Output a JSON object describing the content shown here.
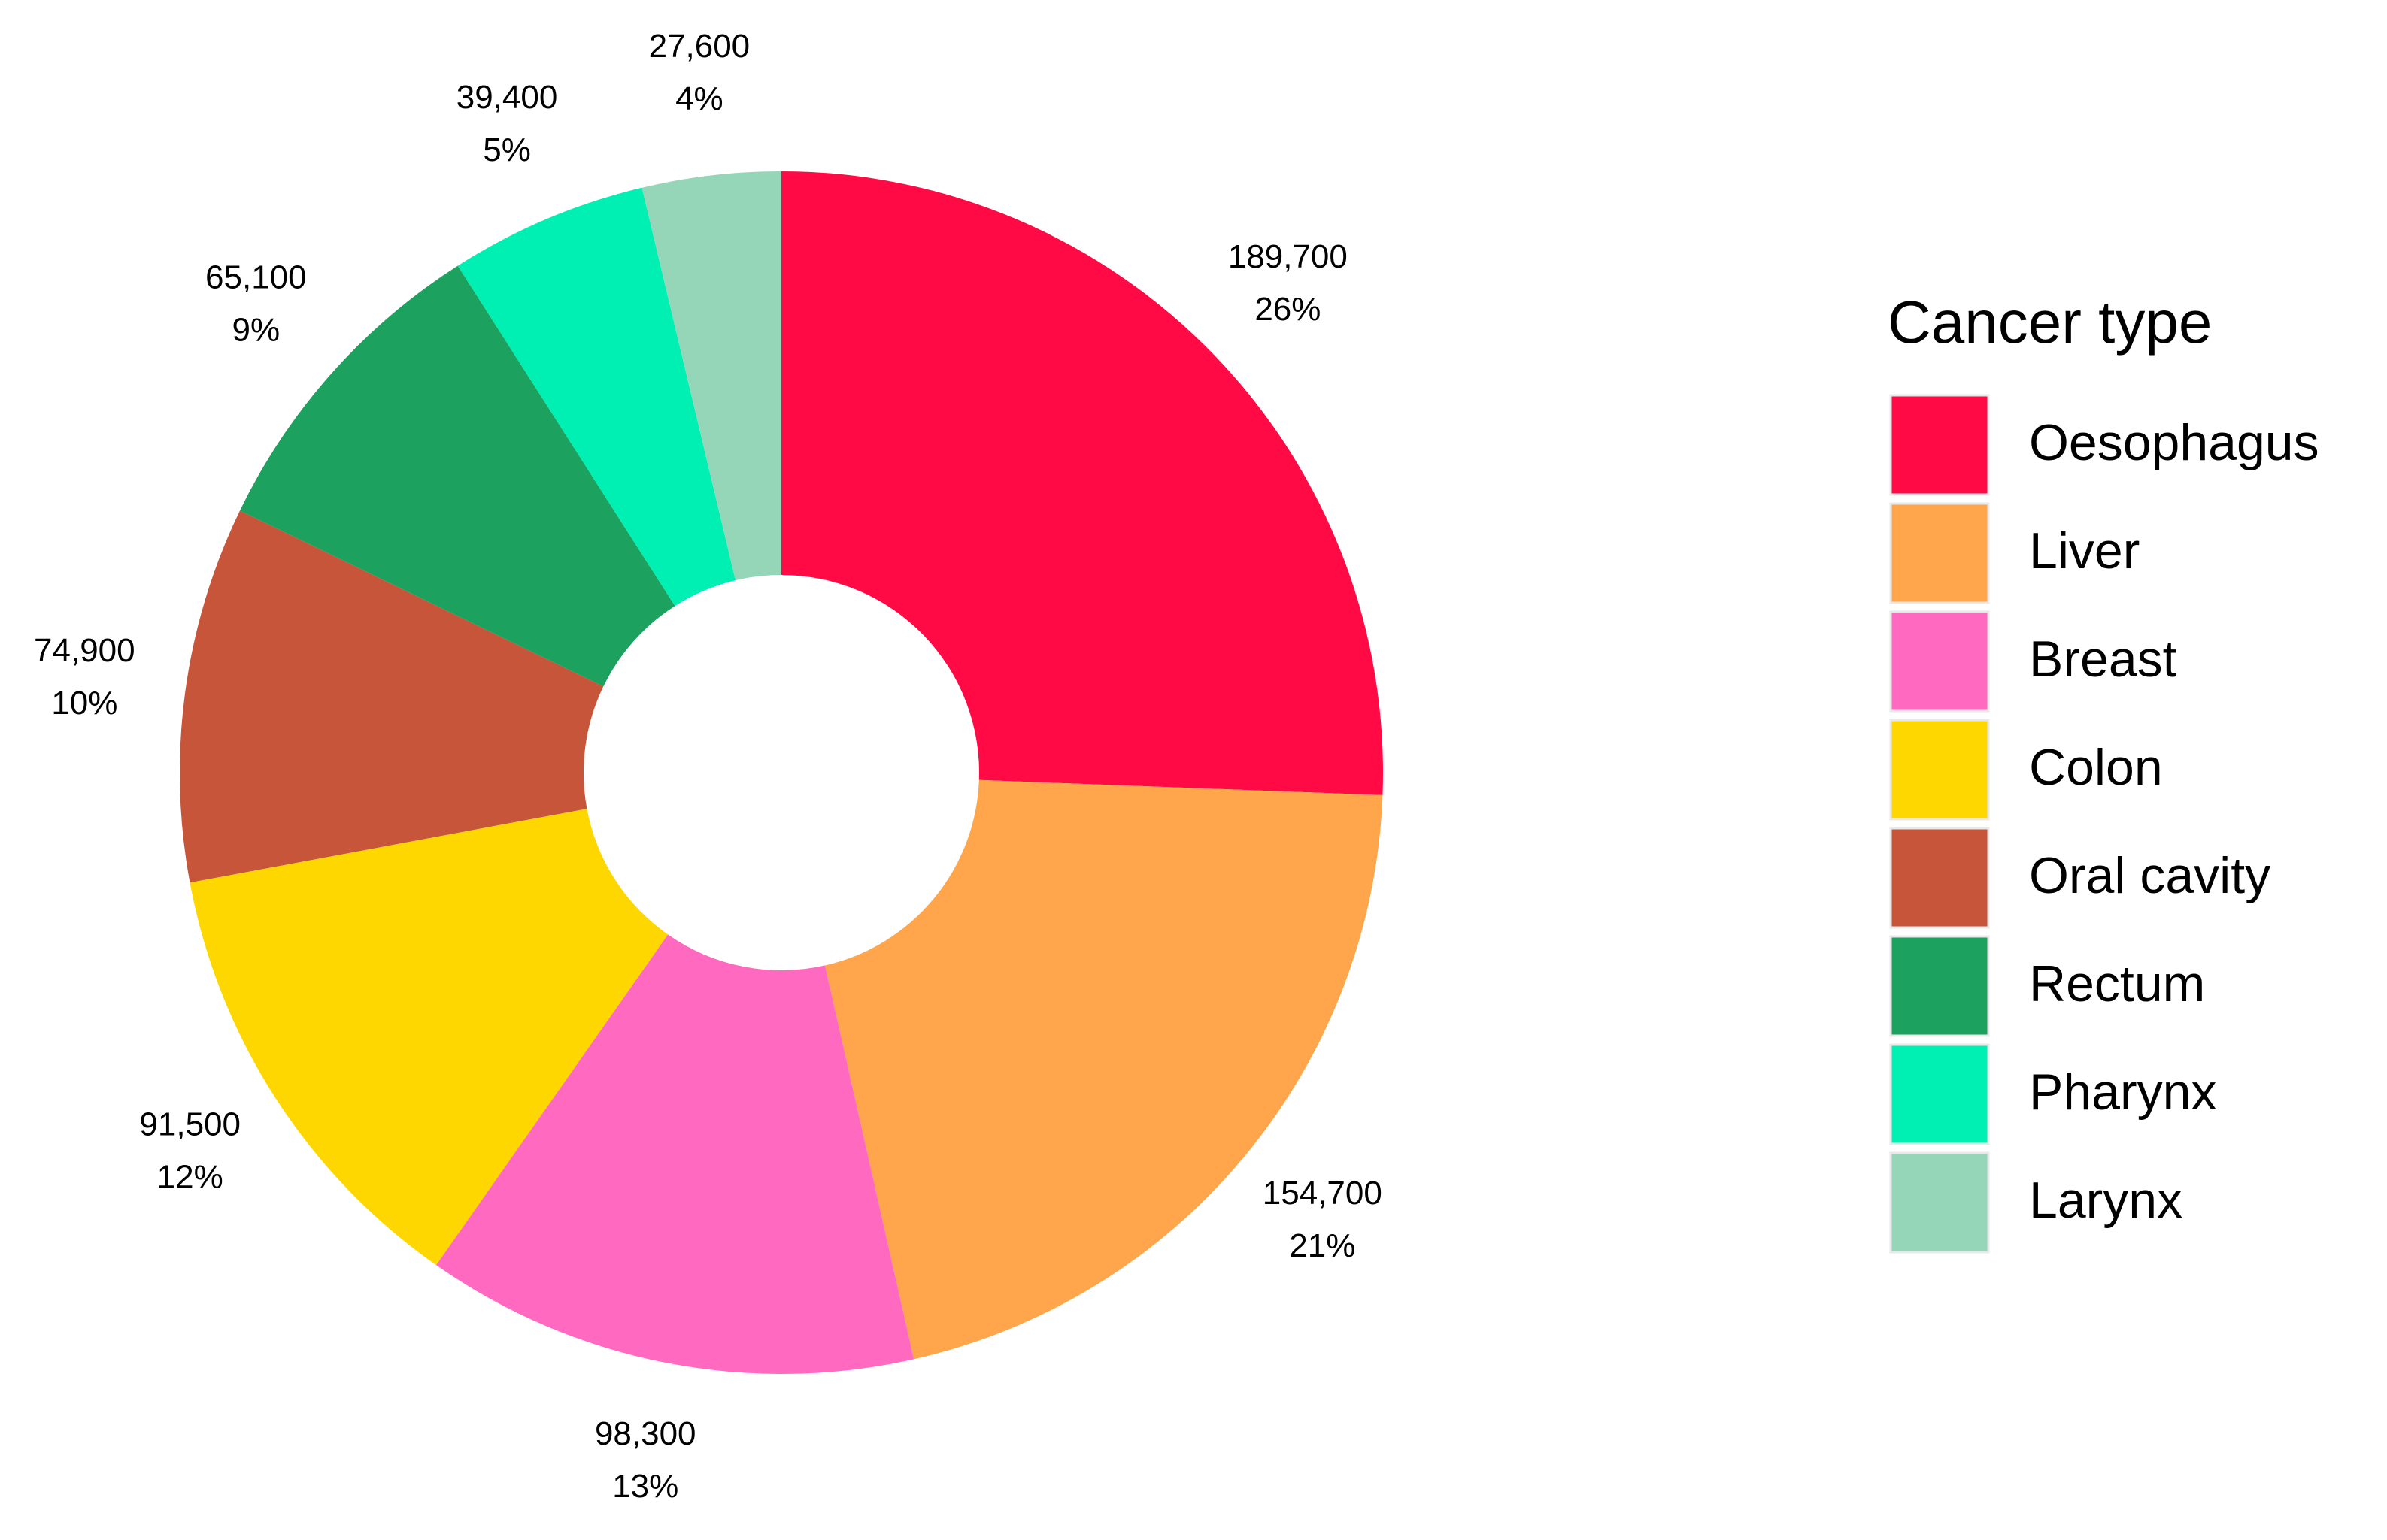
{
  "chart_data": {
    "type": "donut",
    "legend_title": "Cancer type",
    "categories": [
      "Oesophagus",
      "Liver",
      "Breast",
      "Colon",
      "Oral cavity",
      "Rectum",
      "Pharynx",
      "Larynx"
    ],
    "values": [
      189700,
      154700,
      98300,
      91500,
      74900,
      65100,
      39400,
      27600
    ],
    "value_labels": [
      "189,700",
      "154,700",
      "98,300",
      "91,500",
      "74,900",
      "65,100",
      "39,400",
      "27,600"
    ],
    "percent_labels": [
      "26%",
      "21%",
      "13%",
      "12%",
      "10%",
      "9%",
      "5%",
      "4%"
    ],
    "colors": [
      "#ff0a44",
      "#ffa64d",
      "#ff69c0",
      "#ffd700",
      "#c7553a",
      "#1da15e",
      "#00f0b4",
      "#95d5b8"
    ],
    "legend": "right"
  }
}
